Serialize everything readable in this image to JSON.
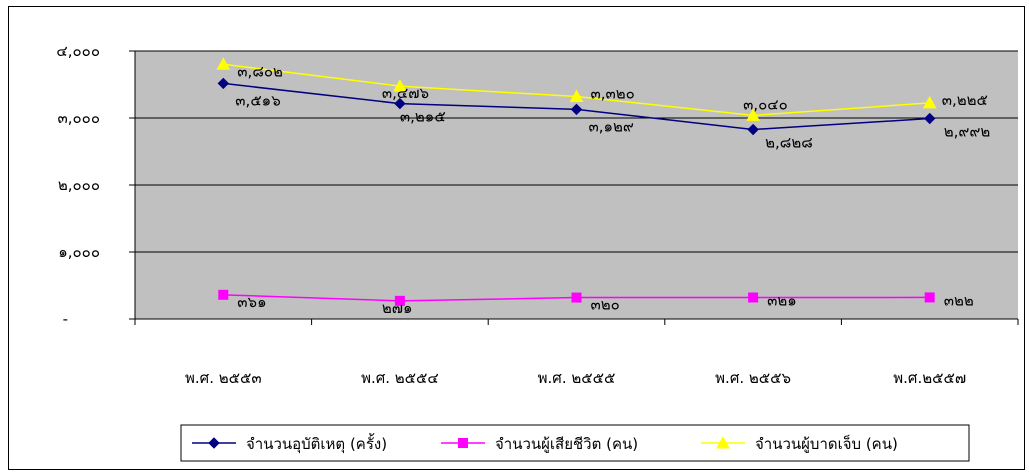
{
  "chart_data": {
    "type": "line",
    "categories": [
      "พ.ศ. ๒๕๕๓",
      "พ.ศ. ๒๕๕๔",
      "พ.ศ. ๒๕๕๕",
      "พ.ศ. ๒๕๕๖",
      "พ.ศ.๒๕๕๗"
    ],
    "y_ticks": [
      {
        "value": 0,
        "label": "-"
      },
      {
        "value": 1000,
        "label": "๑,๐๐๐"
      },
      {
        "value": 2000,
        "label": "๒,๐๐๐"
      },
      {
        "value": 3000,
        "label": "๓,๐๐๐"
      },
      {
        "value": 4000,
        "label": "๔,๐๐๐"
      }
    ],
    "ylim": [
      0,
      4000
    ],
    "grid": true,
    "legend_position": "bottom",
    "series": [
      {
        "name": "จำนวนอุบัติเหตุ (ครั้ง)",
        "color": "#000080",
        "marker": "diamond",
        "values": [
          3516,
          3215,
          3129,
          2828,
          2992
        ],
        "labels": [
          "๓,๕๑๖",
          "๓,๒๑๕",
          "๓,๑๒๙",
          "๒,๘๒๘",
          "๒,๙๙๒"
        ]
      },
      {
        "name": "จำนวนผู้เสียชีวิต (คน)",
        "color": "#ff00ff",
        "marker": "square",
        "values": [
          361,
          271,
          320,
          321,
          322
        ],
        "labels": [
          "๓๖๑",
          "๒๗๑",
          "๓๒๐",
          "๓๒๑",
          "๓๒๒"
        ]
      },
      {
        "name": "จำนวนผู้บาดเจ็บ (คน)",
        "color": "#ffff00",
        "marker": "triangle",
        "values": [
          3802,
          3476,
          3320,
          3040,
          3225
        ],
        "labels": [
          "๓,๘๐๒",
          "๓,๔๗๖",
          "๓,๓๒๐",
          "๓,๐๔๐",
          "๓,๒๒๕"
        ]
      }
    ]
  }
}
